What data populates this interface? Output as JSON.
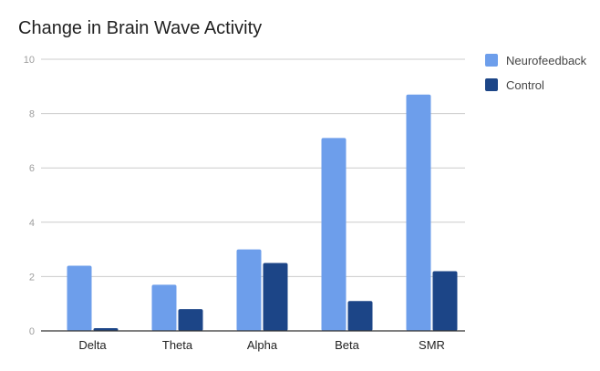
{
  "chart_data": {
    "type": "bar",
    "title": "Change in Brain Wave Activity",
    "xlabel": "",
    "ylabel": "",
    "categories": [
      "Delta",
      "Theta",
      "Alpha",
      "Beta",
      "SMR"
    ],
    "series": [
      {
        "name": "Neurofeedback",
        "color": "#6d9eeb",
        "values": [
          2.4,
          1.7,
          3.0,
          7.1,
          8.7
        ]
      },
      {
        "name": "Control",
        "color": "#1c4587",
        "values": [
          0.1,
          0.8,
          2.5,
          1.1,
          2.2
        ]
      }
    ],
    "ylim": [
      0,
      10
    ],
    "yticks": [
      0,
      2,
      4,
      6,
      8,
      10
    ],
    "grid": true,
    "legend": "right"
  }
}
